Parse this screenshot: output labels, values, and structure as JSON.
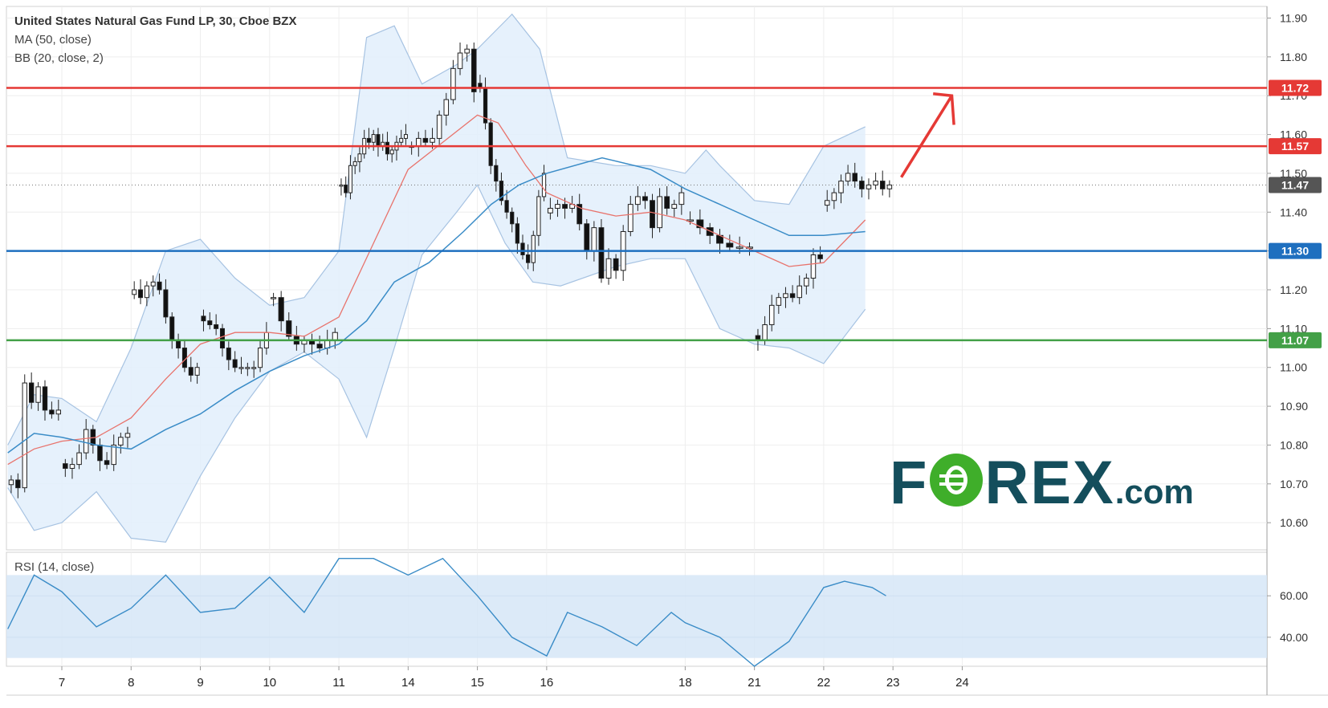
{
  "legend": {
    "title": "United States Natural Gas Fund LP, 30, Cboe BZX",
    "ma": "MA (50, close)",
    "bb": "BB (20, close, 2)",
    "rsi": "RSI (14, close)"
  },
  "logo": {
    "left": "F",
    "right": "REX",
    "suffix": ".com"
  },
  "colors": {
    "up": "#ffffff",
    "down": "#111111",
    "ma": "#3a8cc7",
    "bb_basis": "#e8736c",
    "bb_fill": "#e2eefb",
    "bb_band": "#a7c3e2",
    "resistance": "#e53935",
    "pivot": "#1e6fbf",
    "support": "#43a047",
    "rsi_line": "#3a8cc7",
    "rsi_band": "#d6e6f7",
    "arrow": "#e53935",
    "last_price": "#555555"
  },
  "chart_data": {
    "type": "candlestick",
    "title": "United States Natural Gas Fund LP, 30, Cboe BZX",
    "y_range": [
      10.53,
      11.93
    ],
    "y_ticks": [
      10.6,
      10.7,
      10.8,
      10.9,
      11.0,
      11.1,
      11.2,
      11.3,
      11.4,
      11.5,
      11.6,
      11.7,
      11.8,
      11.9
    ],
    "y_tick_labels": [
      "10.60",
      "10.70",
      "10.80",
      "10.90",
      "11.00",
      "11.10",
      "11.20",
      "11.30",
      "11.40",
      "11.50",
      "11.60",
      "11.70",
      "11.80",
      "11.90"
    ],
    "x_range": [
      6.2,
      24.4
    ],
    "x_ticks": [
      {
        "pos": 7,
        "label": "7"
      },
      {
        "pos": 8,
        "label": "8"
      },
      {
        "pos": 9,
        "label": "9"
      },
      {
        "pos": 10,
        "label": "10"
      },
      {
        "pos": 11,
        "label": "11"
      },
      {
        "pos": 12,
        "label": "14"
      },
      {
        "pos": 13,
        "label": "15"
      },
      {
        "pos": 14,
        "label": "16"
      },
      {
        "pos": 16,
        "label": "18"
      },
      {
        "pos": 17,
        "label": "21"
      },
      {
        "pos": 18,
        "label": "22"
      },
      {
        "pos": 19,
        "label": "23"
      },
      {
        "pos": 20,
        "label": "24"
      }
    ],
    "levels": [
      {
        "value": 11.72,
        "label": "11.72",
        "kind": "resistance"
      },
      {
        "value": 11.57,
        "label": "11.57",
        "kind": "resistance"
      },
      {
        "value": 11.3,
        "label": "11.30",
        "kind": "pivot"
      },
      {
        "value": 11.07,
        "label": "11.07",
        "kind": "support"
      }
    ],
    "last_price": {
      "value": 11.47,
      "label": "11.47"
    },
    "segments": [
      {
        "start": 6.22,
        "end": 7.0,
        "closes": [
          10.71,
          10.69,
          10.96,
          10.91,
          10.95,
          10.89,
          10.88,
          10.89
        ]
      },
      {
        "start": 7.0,
        "end": 8.0,
        "closes": [
          10.74,
          10.75,
          10.78,
          10.84,
          10.8,
          10.76,
          10.75,
          10.8,
          10.82,
          10.83
        ]
      },
      {
        "start": 8.0,
        "end": 9.0,
        "closes": [
          11.2,
          11.18,
          11.21,
          11.22,
          11.2,
          11.13,
          11.07,
          11.05,
          11.0,
          10.98,
          11.0
        ]
      },
      {
        "start": 9.0,
        "end": 10.0,
        "closes": [
          11.12,
          11.11,
          11.1,
          11.05,
          11.02,
          11.0,
          11.0,
          11.0,
          11.0,
          11.05,
          11.09
        ]
      },
      {
        "start": 10.0,
        "end": 11.0,
        "closes": [
          11.18,
          11.12,
          11.08,
          11.06,
          11.07,
          11.06,
          11.05,
          11.07,
          11.09
        ]
      },
      {
        "start": 11.0,
        "end": 12.0,
        "closes": [
          11.47,
          11.45,
          11.52,
          11.53,
          11.55,
          11.59,
          11.58,
          11.6,
          11.57,
          11.58,
          11.55,
          11.56,
          11.58,
          11.59,
          11.6
        ]
      },
      {
        "start": 12.0,
        "end": 13.0,
        "closes": [
          11.57,
          11.59,
          11.58,
          11.59,
          11.65,
          11.69,
          11.77,
          11.81,
          11.82,
          11.71
        ]
      },
      {
        "start": 13.0,
        "end": 14.0,
        "closes": [
          11.72,
          11.63,
          11.52,
          11.48,
          11.43,
          11.4,
          11.37,
          11.32,
          11.29,
          11.27,
          11.34,
          11.44,
          11.5
        ]
      },
      {
        "start": 14.0,
        "end": 16.0,
        "closes": [
          11.41,
          11.42,
          11.41,
          11.42,
          11.37,
          11.3,
          11.36,
          11.23,
          11.28,
          11.25,
          11.35,
          11.42,
          11.44,
          11.43,
          11.36,
          11.44,
          11.41,
          11.42,
          11.45
        ]
      },
      {
        "start": 16.0,
        "end": 17.0,
        "closes": [
          11.38,
          11.36,
          11.34,
          11.32,
          11.31,
          11.31,
          11.31
        ]
      },
      {
        "start": 17.0,
        "end": 18.0,
        "closes": [
          11.07,
          11.11,
          11.16,
          11.18,
          11.19,
          11.18,
          11.21,
          11.23,
          11.29,
          11.28
        ]
      },
      {
        "start": 18.0,
        "end": 19.0,
        "closes": [
          11.43,
          11.45,
          11.48,
          11.5,
          11.48,
          11.46,
          11.47,
          11.48,
          11.46,
          11.47
        ]
      }
    ],
    "ma50": [
      [
        6.22,
        10.78
      ],
      [
        6.6,
        10.83
      ],
      [
        7.0,
        10.82
      ],
      [
        7.5,
        10.8
      ],
      [
        8.0,
        10.79
      ],
      [
        8.5,
        10.84
      ],
      [
        9.0,
        10.88
      ],
      [
        9.5,
        10.94
      ],
      [
        10.0,
        10.99
      ],
      [
        10.5,
        11.03
      ],
      [
        11.0,
        11.06
      ],
      [
        11.4,
        11.12
      ],
      [
        11.8,
        11.22
      ],
      [
        12.3,
        11.27
      ],
      [
        12.8,
        11.35
      ],
      [
        13.2,
        11.42
      ],
      [
        13.6,
        11.47
      ],
      [
        14.0,
        11.5
      ],
      [
        14.8,
        11.54
      ],
      [
        15.5,
        11.51
      ],
      [
        16.0,
        11.46
      ],
      [
        16.5,
        11.42
      ],
      [
        17.0,
        11.38
      ],
      [
        17.5,
        11.34
      ],
      [
        18.0,
        11.34
      ],
      [
        18.6,
        11.35
      ]
    ],
    "bb_basis": [
      [
        6.22,
        10.75
      ],
      [
        6.6,
        10.79
      ],
      [
        7.0,
        10.81
      ],
      [
        7.5,
        10.82
      ],
      [
        8.0,
        10.87
      ],
      [
        8.5,
        10.97
      ],
      [
        9.0,
        11.06
      ],
      [
        9.5,
        11.09
      ],
      [
        10.0,
        11.09
      ],
      [
        10.5,
        11.08
      ],
      [
        11.0,
        11.13
      ],
      [
        11.5,
        11.32
      ],
      [
        12.0,
        11.51
      ],
      [
        12.5,
        11.58
      ],
      [
        13.0,
        11.65
      ],
      [
        13.3,
        11.63
      ],
      [
        13.7,
        11.52
      ],
      [
        14.0,
        11.45
      ],
      [
        14.5,
        11.41
      ],
      [
        15.0,
        11.39
      ],
      [
        15.5,
        11.4
      ],
      [
        16.0,
        11.38
      ],
      [
        16.5,
        11.34
      ],
      [
        17.0,
        11.3
      ],
      [
        17.5,
        11.26
      ],
      [
        18.0,
        11.27
      ],
      [
        18.6,
        11.38
      ]
    ],
    "bb_upper": [
      [
        6.22,
        10.8
      ],
      [
        6.6,
        10.93
      ],
      [
        7.0,
        10.92
      ],
      [
        7.5,
        10.86
      ],
      [
        8.0,
        11.05
      ],
      [
        8.5,
        11.3
      ],
      [
        9.0,
        11.33
      ],
      [
        9.5,
        11.23
      ],
      [
        10.0,
        11.16
      ],
      [
        10.5,
        11.18
      ],
      [
        11.0,
        11.3
      ],
      [
        11.4,
        11.85
      ],
      [
        11.8,
        11.88
      ],
      [
        12.2,
        11.73
      ],
      [
        12.7,
        11.78
      ],
      [
        13.0,
        11.82
      ],
      [
        13.5,
        11.91
      ],
      [
        13.9,
        11.82
      ],
      [
        14.3,
        11.54
      ],
      [
        15.0,
        11.52
      ],
      [
        15.5,
        11.52
      ],
      [
        16.0,
        11.5
      ],
      [
        16.3,
        11.56
      ],
      [
        16.5,
        11.52
      ],
      [
        17.0,
        11.43
      ],
      [
        17.5,
        11.42
      ],
      [
        18.0,
        11.57
      ],
      [
        18.6,
        11.62
      ]
    ],
    "bb_lower": [
      [
        6.22,
        10.69
      ],
      [
        6.6,
        10.58
      ],
      [
        7.0,
        10.6
      ],
      [
        7.5,
        10.68
      ],
      [
        8.0,
        10.56
      ],
      [
        8.5,
        10.55
      ],
      [
        9.0,
        10.72
      ],
      [
        9.5,
        10.87
      ],
      [
        10.0,
        10.99
      ],
      [
        10.5,
        11.04
      ],
      [
        11.0,
        10.97
      ],
      [
        11.4,
        10.82
      ],
      [
        11.8,
        11.05
      ],
      [
        12.2,
        11.29
      ],
      [
        12.7,
        11.4
      ],
      [
        13.0,
        11.47
      ],
      [
        13.4,
        11.32
      ],
      [
        13.8,
        11.22
      ],
      [
        14.2,
        11.21
      ],
      [
        15.0,
        11.26
      ],
      [
        15.5,
        11.28
      ],
      [
        16.0,
        11.28
      ],
      [
        16.5,
        11.1
      ],
      [
        17.0,
        11.06
      ],
      [
        17.5,
        11.05
      ],
      [
        18.0,
        11.01
      ],
      [
        18.6,
        11.15
      ]
    ],
    "rsi": {
      "range": [
        26,
        81
      ],
      "band": [
        30,
        70
      ],
      "ticks": [
        40,
        60
      ],
      "tick_labels": [
        "40.00",
        "60.00"
      ],
      "values": [
        [
          6.22,
          44
        ],
        [
          6.6,
          70
        ],
        [
          7.0,
          62
        ],
        [
          7.5,
          45
        ],
        [
          8.0,
          54
        ],
        [
          8.5,
          70
        ],
        [
          9.0,
          52
        ],
        [
          9.5,
          54
        ],
        [
          10.0,
          69
        ],
        [
          10.5,
          52
        ],
        [
          11.0,
          78
        ],
        [
          11.5,
          78
        ],
        [
          12.0,
          70
        ],
        [
          12.5,
          78
        ],
        [
          13.0,
          60
        ],
        [
          13.5,
          40
        ],
        [
          14.0,
          31
        ],
        [
          14.3,
          52
        ],
        [
          14.8,
          45
        ],
        [
          15.3,
          36
        ],
        [
          15.8,
          52
        ],
        [
          16.0,
          47
        ],
        [
          16.5,
          40
        ],
        [
          17.0,
          26
        ],
        [
          17.5,
          38
        ],
        [
          18.0,
          64
        ],
        [
          18.3,
          67
        ],
        [
          18.7,
          64
        ],
        [
          18.9,
          60
        ]
      ]
    }
  }
}
